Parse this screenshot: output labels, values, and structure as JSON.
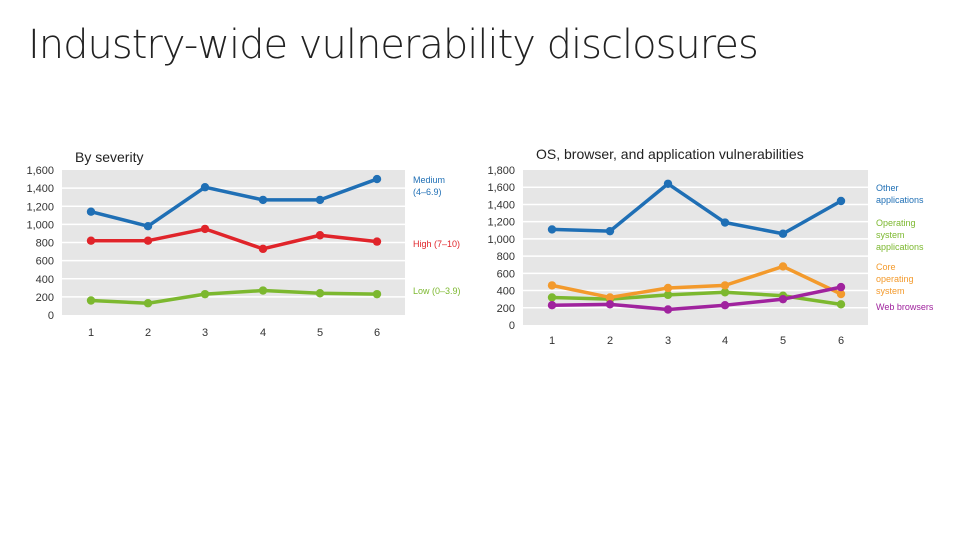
{
  "page": {
    "title": "Industry-wide vulnerability disclosures"
  },
  "colors": {
    "blue": "#1f6fb5",
    "red": "#e0242a",
    "green": "#7cb82f",
    "orange": "#f39a2c",
    "teal": "#22a88e",
    "purple": "#a0239e",
    "plot_bg": "#e6e6e6",
    "grid": "#ffffff"
  },
  "chart_data": [
    {
      "type": "line",
      "title": "By severity",
      "categories": [
        "1",
        "2",
        "3",
        "4",
        "5",
        "6"
      ],
      "ylim": [
        0,
        1600
      ],
      "yticks": [
        "0",
        "200",
        "400",
        "600",
        "800",
        "1,000",
        "1,200",
        "1,400",
        "1,600"
      ],
      "grid": true,
      "series": [
        {
          "name": "Medium (4–6.9)",
          "color": "#1f6fb5",
          "values": [
            1140,
            980,
            1410,
            1270,
            1270,
            1500
          ]
        },
        {
          "name": "High (7–10)",
          "color": "#e0242a",
          "values": [
            820,
            820,
            950,
            730,
            880,
            810
          ]
        },
        {
          "name": "Low (0–3.9)",
          "color": "#7cb82f",
          "values": [
            160,
            130,
            230,
            270,
            240,
            230
          ]
        }
      ]
    },
    {
      "type": "line",
      "title": "OS, browser, and application vulnerabilities",
      "categories": [
        "1",
        "2",
        "3",
        "4",
        "5",
        "6"
      ],
      "ylim": [
        0,
        1800
      ],
      "yticks": [
        "0",
        "200",
        "400",
        "600",
        "800",
        "1,000",
        "1,200",
        "1,400",
        "1,600",
        "1,800"
      ],
      "grid": true,
      "series": [
        {
          "name": "Other applications",
          "color": "#1f6fb5",
          "values": [
            1110,
            1090,
            1640,
            1190,
            1060,
            1440
          ]
        },
        {
          "name": "Operating system applications",
          "color": "#7cb82f",
          "values": [
            320,
            300,
            350,
            380,
            340,
            240
          ]
        },
        {
          "name": "Core operating system",
          "color": "#f39a2c",
          "values": [
            460,
            320,
            430,
            460,
            680,
            360
          ]
        },
        {
          "name": "Web browsers",
          "color": "#a0239e",
          "values": [
            230,
            240,
            180,
            230,
            300,
            440
          ]
        }
      ]
    }
  ]
}
